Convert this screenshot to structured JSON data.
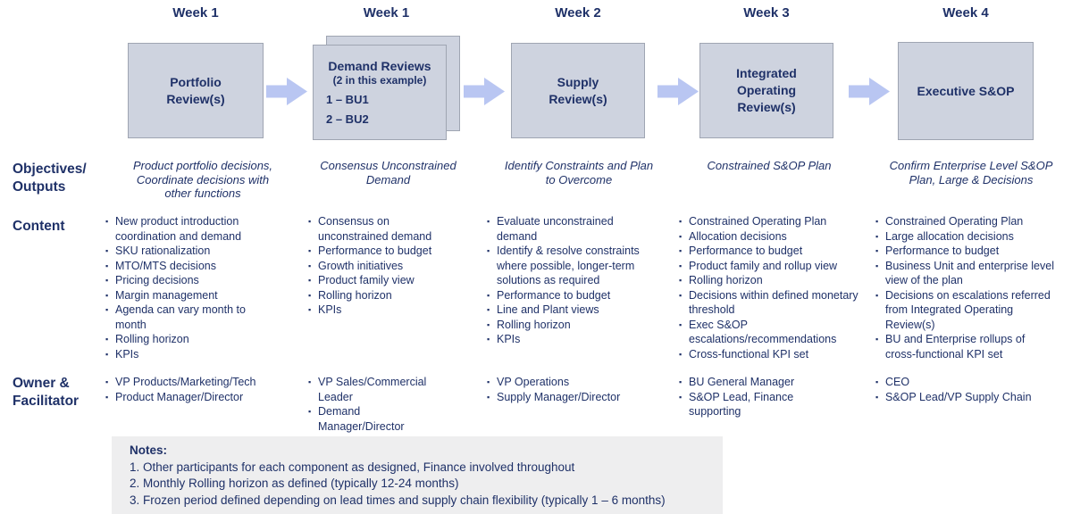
{
  "colors": {
    "text_navy": "#1F3168",
    "box_fill": "#CED3DF",
    "box_border": "#9FA5B2",
    "arrow_fill": "#B9C6F2",
    "notes_background": "#EEEEEF"
  },
  "row_labels": {
    "objectives": "Objectives/\nOutputs",
    "content": "Content",
    "owner": "Owner &\nFacilitator"
  },
  "columns": [
    {
      "week": "Week 1",
      "box_title": "Portfolio\nReview(s)",
      "objective": "Product portfolio decisions,\nCoordinate decisions with\nother functions",
      "content": [
        "New product introduction coordination and demand",
        "SKU rationalization",
        "MTO/MTS decisions",
        "Pricing decisions",
        "Margin management",
        "Agenda can vary month to month",
        "Rolling horizon",
        "KPIs"
      ],
      "owners": [
        "VP Products/Marketing/Tech",
        "Product Manager/Director"
      ]
    },
    {
      "week": "Week 1",
      "box_title": "Demand Reviews",
      "box_subtitle": "(2 in this example)",
      "box_lines": [
        "1 – BU1",
        "2 – BU2"
      ],
      "objective": "Consensus Unconstrained\nDemand",
      "content": [
        "Consensus on unconstrained demand",
        "Performance to budget",
        "Growth initiatives",
        "Product family view",
        "Rolling horizon",
        "KPIs"
      ],
      "owners": [
        "VP Sales/Commercial Leader",
        "Demand Manager/Director"
      ]
    },
    {
      "week": "Week 2",
      "box_title": "Supply\nReview(s)",
      "objective": "Identify Constraints and Plan\nto Overcome",
      "content": [
        "Evaluate unconstrained demand",
        "Identify & resolve constraints where possible, longer-term solutions as required",
        "Performance to budget",
        "Line and Plant views",
        "Rolling horizon",
        "KPIs"
      ],
      "owners": [
        "VP Operations",
        "Supply Manager/Director"
      ]
    },
    {
      "week": "Week 3",
      "box_title": "Integrated\nOperating\nReview(s)",
      "objective": "Constrained S&OP Plan",
      "content": [
        "Constrained Operating Plan",
        "Allocation decisions",
        "Performance to budget",
        "Product family and rollup view",
        "Rolling horizon",
        "Decisions within defined monetary threshold",
        "Exec S&OP escalations/recommendations",
        "Cross-functional KPI set"
      ],
      "owners": [
        "BU General Manager",
        "S&OP Lead, Finance supporting"
      ]
    },
    {
      "week": "Week 4",
      "box_title": "Executive S&OP",
      "objective": "Confirm Enterprise Level S&OP\nPlan, Large & Decisions",
      "content": [
        "Constrained Operating Plan",
        "Large allocation decisions",
        "Performance to budget",
        "Business Unit and enterprise level view of the plan",
        "Decisions on escalations referred from Integrated Operating Review(s)",
        "BU and Enterprise rollups of cross-functional KPI set"
      ],
      "owners": [
        "CEO",
        "S&OP Lead/VP Supply Chain"
      ]
    }
  ],
  "notes": {
    "heading": "Notes:",
    "lines": [
      "1. Other participants for each component as designed, Finance involved throughout",
      "2. Monthly Rolling horizon as defined (typically 12-24 months)",
      "3. Frozen period defined depending on lead times and supply chain flexibility (typically 1 – 6 months)"
    ]
  }
}
